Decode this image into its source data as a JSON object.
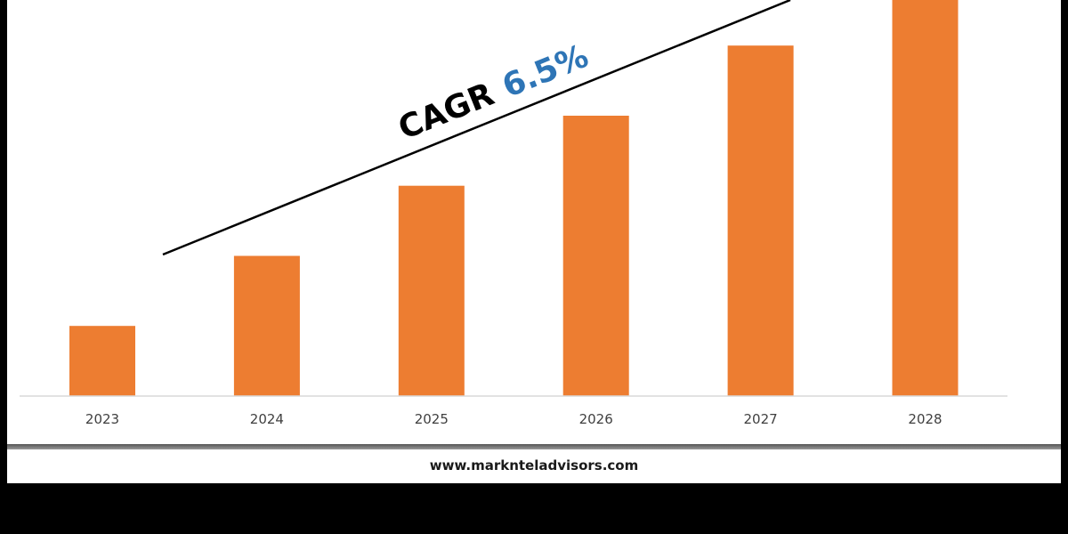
{
  "chart_data": {
    "type": "bar",
    "categories": [
      "2023",
      "2024",
      "2025",
      "2026",
      "2027",
      "2028"
    ],
    "values": [
      1.0,
      2.0,
      3.0,
      4.0,
      5.0,
      5.65
    ],
    "ylim": [
      0,
      5.65
    ],
    "grid": false,
    "colors": {
      "bar": "#ED7D31",
      "axis": "#D9D9D9",
      "trend": "#000000",
      "cagr_value": "#2E75B6"
    },
    "annotation": {
      "label": "CAGR",
      "value": "6.5%"
    }
  },
  "footer": {
    "website": "www.marknteladvisors.com"
  }
}
